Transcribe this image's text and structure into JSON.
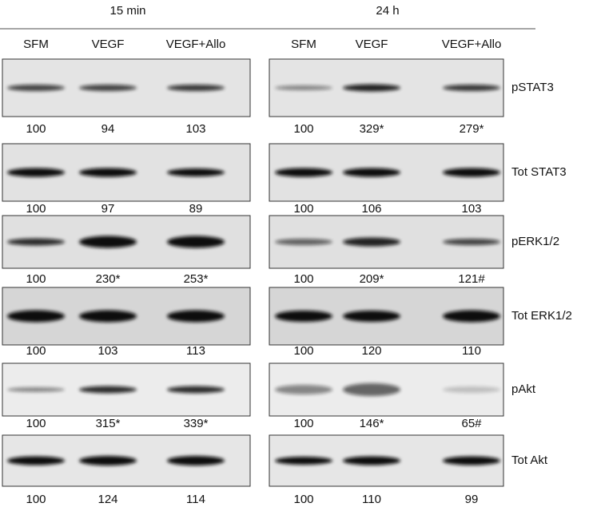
{
  "time_points": [
    "15 min",
    "24 h"
  ],
  "groups": [
    {
      "lanes": [
        "SFM",
        "VEGF",
        "VEGF+Allo"
      ]
    },
    {
      "lanes": [
        "SFM",
        "VEGF",
        "VEGF+Allo"
      ]
    }
  ],
  "rows": [
    {
      "label": "pSTAT3",
      "left": [
        "100",
        "94",
        "103"
      ],
      "right": [
        "100",
        "329*",
        "279*"
      ]
    },
    {
      "label": "Tot STAT3",
      "left": [
        "100",
        "97",
        "89"
      ],
      "right": [
        "100",
        "106",
        "103"
      ]
    },
    {
      "label": "pERK1/2",
      "left": [
        "100",
        "230*",
        "253*"
      ],
      "right": [
        "100",
        "209*",
        "121#"
      ]
    },
    {
      "label": "Tot ERK1/2",
      "left": [
        "100",
        "103",
        "113"
      ],
      "right": [
        "100",
        "120",
        "110"
      ]
    },
    {
      "label": "pAkt",
      "left": [
        "100",
        "315*",
        "339*"
      ],
      "right": [
        "100",
        "146*",
        "65#"
      ]
    },
    {
      "label": "Tot Akt",
      "left": [
        "100",
        "124",
        "114"
      ],
      "right": [
        "100",
        "110",
        "99"
      ]
    }
  ]
}
